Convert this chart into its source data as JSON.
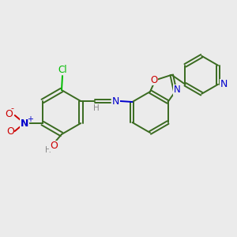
{
  "bg_color": "#ebebeb",
  "fig_width": 3.0,
  "fig_height": 3.0,
  "dpi": 100,
  "bond_color": "#2d5016",
  "bond_lw": 1.5,
  "atom_colors": {
    "C": "#1a1a1a",
    "N": "#0000cc",
    "O": "#cc0000",
    "Cl": "#00aa00",
    "H": "#888888",
    "N_blue": "#0000dd",
    "O_red": "#dd0000"
  }
}
